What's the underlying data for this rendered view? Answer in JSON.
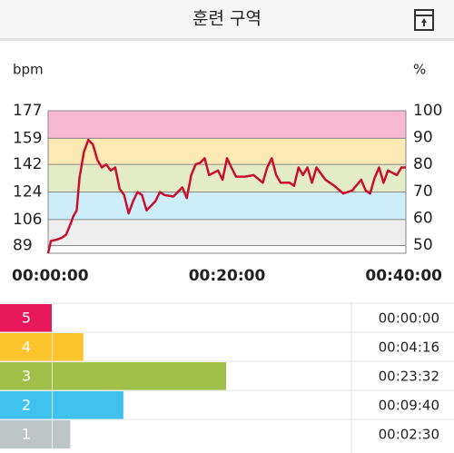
{
  "header": {
    "title": "훈련 구역"
  },
  "chart_data": {
    "type": "line",
    "y_label": "bpm",
    "y2_label": "%",
    "x": [
      0,
      0.3,
      1,
      1.5,
      2,
      2.5,
      2.8,
      3.2,
      3.5,
      4,
      4.5,
      5,
      5.5,
      6,
      6.5,
      7,
      7.5,
      8,
      8.5,
      9,
      9.5,
      10,
      10.5,
      11,
      11.5,
      12,
      12.5,
      13,
      14,
      15,
      15.5,
      16,
      16.5,
      17,
      17.5,
      18,
      19,
      19.5,
      20,
      20.5,
      21,
      22,
      23,
      24,
      24.5,
      25,
      25.5,
      26,
      27,
      27.5,
      28,
      28.5,
      29,
      29.5,
      30,
      31,
      32,
      33,
      34,
      35,
      35.5,
      36,
      36.5,
      37,
      37.5,
      38,
      39,
      39.5,
      40
    ],
    "series": [
      {
        "color": "#c8102e",
        "values": [
          84,
          92,
          93,
          94,
          96,
          103,
          108,
          112,
          133,
          150,
          158,
          155,
          145,
          140,
          142,
          138,
          140,
          126,
          122,
          110,
          118,
          124,
          122,
          112,
          115,
          118,
          124,
          122,
          121,
          127,
          120,
          135,
          142,
          143,
          146,
          135,
          138,
          132,
          146,
          140,
          134,
          134,
          135,
          130,
          140,
          146,
          135,
          130,
          130,
          128,
          140,
          135,
          140,
          130,
          140,
          132,
          128,
          123,
          125,
          132,
          125,
          123,
          133,
          140,
          130,
          138,
          135,
          140,
          140
        ]
      }
    ],
    "xlim": [
      0,
      40
    ],
    "xticks": [
      {
        "value": 0,
        "label": "00:00:00"
      },
      {
        "value": 20,
        "label": "00:20:00"
      },
      {
        "value": 40,
        "label": "00:40:00"
      }
    ],
    "ylim": [
      84,
      177
    ],
    "yticks": [
      89,
      106,
      124,
      142,
      159,
      177
    ],
    "y2lim": [
      47,
      100
    ],
    "y2ticks": [
      50,
      60,
      70,
      80,
      90,
      100
    ],
    "grid": true
  },
  "zones": [
    {
      "name": "5",
      "color": "#e8185c",
      "band": "#f7b9d0",
      "time": {
        "value": 0,
        "label": "00:00:00"
      }
    },
    {
      "name": "4",
      "color": "#fdc42d",
      "band": "#fde9b3",
      "time": {
        "value": 256,
        "label": "00:04:16"
      }
    },
    {
      "name": "3",
      "color": "#a0c04a",
      "band": "#e3ecc5",
      "time": {
        "value": 1412,
        "label": "00:23:32"
      }
    },
    {
      "name": "2",
      "color": "#3fc3ee",
      "band": "#cdedf9",
      "time": {
        "value": 580,
        "label": "00:09:40"
      }
    },
    {
      "name": "1",
      "color": "#bcc4c4",
      "band": "#eeeeee",
      "time": {
        "value": 150,
        "label": "00:02:30"
      }
    }
  ]
}
